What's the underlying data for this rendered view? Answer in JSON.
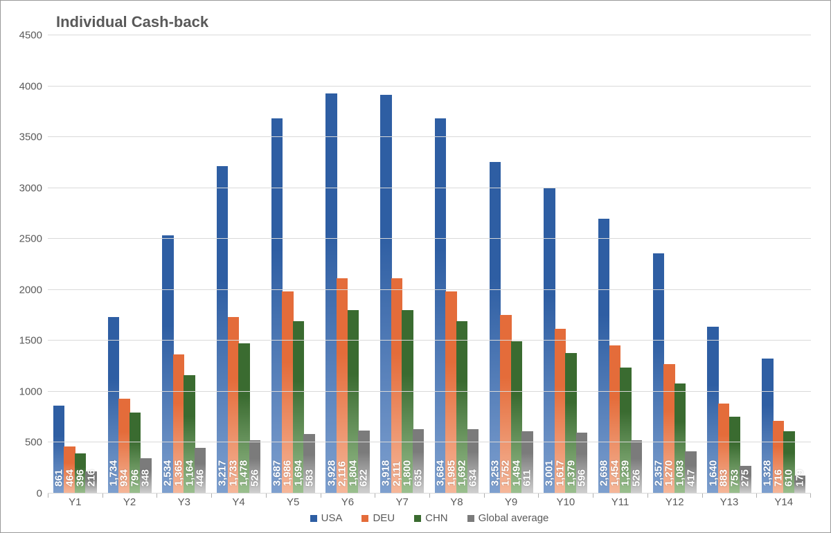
{
  "chart": {
    "type": "bar",
    "title": "Individual Cash-back",
    "title_fontsize": 22,
    "title_color": "#595959",
    "background_color": "#ffffff",
    "border_color": "#999999",
    "grid_color": "#d9d9d9",
    "axis_text_color": "#595959",
    "axis_fontsize": 15,
    "ylim": [
      0,
      4500
    ],
    "ytick_step": 500,
    "yticks": [
      0,
      500,
      1000,
      1500,
      2000,
      2500,
      3000,
      3500,
      4000,
      4500
    ],
    "categories": [
      "Y1",
      "Y2",
      "Y3",
      "Y4",
      "Y5",
      "Y6",
      "Y7",
      "Y8",
      "Y9",
      "Y10",
      "Y11",
      "Y12",
      "Y13",
      "Y14"
    ],
    "series": [
      {
        "name": "USA",
        "color_top": "#2e5ea3",
        "color_bottom": "#7ea0cf",
        "values": [
          861,
          1734,
          2534,
          3217,
          3687,
          3928,
          3918,
          3684,
          3253,
          3001,
          2698,
          2357,
          1640,
          1328
        ],
        "labels": [
          "861",
          "1,734",
          "2,534",
          "3,217",
          "3,687",
          "3,928",
          "3,918",
          "3,684",
          "3,253",
          "3,001",
          "2,698",
          "2,357",
          "1,640",
          "1,328"
        ]
      },
      {
        "name": "DEU",
        "color_top": "#e46c3a",
        "color_bottom": "#f5b79a",
        "values": [
          464,
          934,
          1365,
          1733,
          1986,
          2116,
          2111,
          1985,
          1752,
          1617,
          1454,
          1270,
          883,
          716
        ],
        "labels": [
          "464",
          "934",
          "1,365",
          "1,733",
          "1,986",
          "2,116",
          "2,111",
          "1,985",
          "1,752",
          "1,617",
          "1,454",
          "1,270",
          "883",
          "716"
        ]
      },
      {
        "name": "CHN",
        "color_top": "#3a6b30",
        "color_bottom": "#9bc08f",
        "values": [
          396,
          796,
          1164,
          1478,
          1694,
          1804,
          1800,
          1692,
          1494,
          1379,
          1239,
          1083,
          753,
          610
        ],
        "labels": [
          "396",
          "796",
          "1,164",
          "1,478",
          "1,694",
          "1,804",
          "1,800",
          "1,692",
          "1,494",
          "1,379",
          "1,239",
          "1,083",
          "753",
          "610"
        ]
      },
      {
        "name": "Global average",
        "color_top": "#7b7b7b",
        "color_bottom": "#d0d0d0",
        "values": [
          216,
          348,
          446,
          526,
          583,
          622,
          635,
          634,
          611,
          596,
          526,
          417,
          275,
          179
        ],
        "labels": [
          "216",
          "348",
          "446",
          "526",
          "583",
          "622",
          "635",
          "634",
          "611",
          "596",
          "526",
          "417",
          "275",
          "179"
        ]
      }
    ],
    "data_label_color": "#ffffff",
    "data_label_fontsize": 15,
    "legend_fontsize": 15,
    "legend_position": "bottom"
  }
}
